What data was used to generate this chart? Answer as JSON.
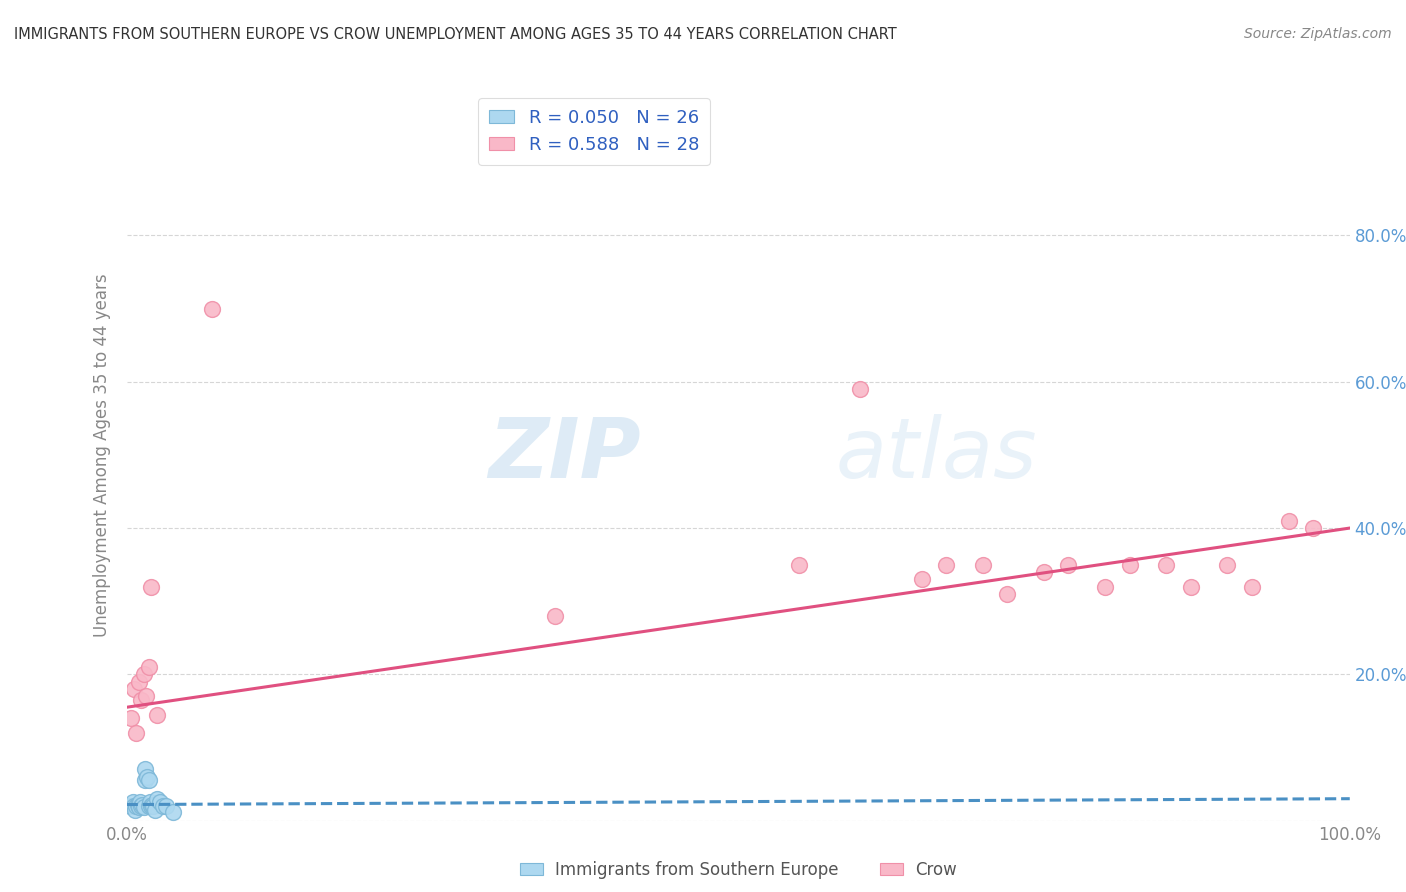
{
  "title": "IMMIGRANTS FROM SOUTHERN EUROPE VS CROW UNEMPLOYMENT AMONG AGES 35 TO 44 YEARS CORRELATION CHART",
  "source": "Source: ZipAtlas.com",
  "ylabel": "Unemployment Among Ages 35 to 44 years",
  "legend_labels": [
    "Immigrants from Southern Europe",
    "Crow"
  ],
  "R_blue": 0.05,
  "N_blue": 26,
  "R_pink": 0.588,
  "N_pink": 28,
  "xlim": [
    0,
    1.0
  ],
  "ylim": [
    0,
    1.0
  ],
  "xticks": [
    0.0,
    0.2,
    0.4,
    0.6,
    0.8,
    1.0
  ],
  "yticks": [
    0.0,
    0.2,
    0.4,
    0.6,
    0.8
  ],
  "xtick_labels": [
    "0.0%",
    "",
    "",
    "",
    "",
    "100.0%"
  ],
  "ytick_labels_right": [
    "",
    "20.0%",
    "40.0%",
    "60.0%",
    "80.0%"
  ],
  "blue_scatter_x": [
    0.003,
    0.005,
    0.006,
    0.007,
    0.008,
    0.009,
    0.01,
    0.011,
    0.012,
    0.013,
    0.014,
    0.015,
    0.015,
    0.017,
    0.018,
    0.018,
    0.019,
    0.02,
    0.021,
    0.022,
    0.023,
    0.025,
    0.027,
    0.03,
    0.032,
    0.038
  ],
  "blue_scatter_y": [
    0.02,
    0.025,
    0.02,
    0.015,
    0.02,
    0.022,
    0.018,
    0.025,
    0.02,
    0.022,
    0.018,
    0.055,
    0.07,
    0.06,
    0.055,
    0.02,
    0.025,
    0.02,
    0.022,
    0.02,
    0.015,
    0.03,
    0.025,
    0.02,
    0.02,
    0.012
  ],
  "pink_scatter_x": [
    0.004,
    0.006,
    0.008,
    0.01,
    0.012,
    0.014,
    0.016,
    0.018,
    0.02,
    0.025,
    0.07,
    0.35,
    0.55,
    0.6,
    0.65,
    0.67,
    0.7,
    0.72,
    0.75,
    0.77,
    0.8,
    0.82,
    0.85,
    0.87,
    0.9,
    0.92,
    0.95,
    0.97
  ],
  "pink_scatter_y": [
    0.14,
    0.18,
    0.12,
    0.19,
    0.165,
    0.2,
    0.17,
    0.21,
    0.32,
    0.145,
    0.7,
    0.28,
    0.35,
    0.59,
    0.33,
    0.35,
    0.35,
    0.31,
    0.34,
    0.35,
    0.32,
    0.35,
    0.35,
    0.32,
    0.35,
    0.32,
    0.41,
    0.4
  ],
  "blue_line_y_intercept": 0.022,
  "blue_line_slope": 0.008,
  "pink_line_y_intercept": 0.155,
  "pink_line_slope": 0.245,
  "watermark_zip": "ZIP",
  "watermark_atlas": "atlas",
  "scatter_size": 130,
  "blue_color": "#add8f0",
  "blue_edge": "#7eb8d8",
  "pink_color": "#f9b8c8",
  "pink_edge": "#f090a8",
  "blue_line_color": "#4a90c4",
  "pink_line_color": "#e05080",
  "grid_color": "#cccccc",
  "title_color": "#333333",
  "right_axis_color": "#5b9bd5",
  "legend_R_color": "#3060c0",
  "axis_label_color": "#888888"
}
